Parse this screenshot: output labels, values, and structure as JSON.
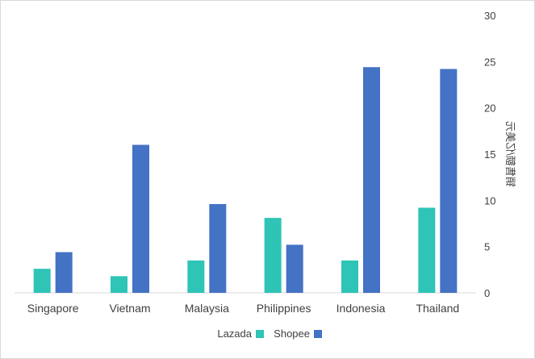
{
  "chart_data": {
    "type": "bar",
    "categories": [
      "Thailand",
      "Indonesia",
      "Philippines",
      "Malaysia",
      "Vietnam",
      "Singapore"
    ],
    "series": [
      {
        "name": "Lazada",
        "color": "#2ec4b6",
        "values": [
          9.2,
          3.5,
          8.1,
          3.5,
          1.8,
          2.6
        ]
      },
      {
        "name": "Shopee",
        "color": "#4472c4",
        "values": [
          24.2,
          24.4,
          5.2,
          9.6,
          16.0,
          4.4
        ]
      }
    ],
    "ylabel": "销售额/亿美元",
    "ylim": [
      0,
      30
    ],
    "yticks": [
      0,
      5,
      10,
      15,
      20,
      25,
      30
    ],
    "grid": false,
    "legend_position": "bottom",
    "mirrored": true
  }
}
